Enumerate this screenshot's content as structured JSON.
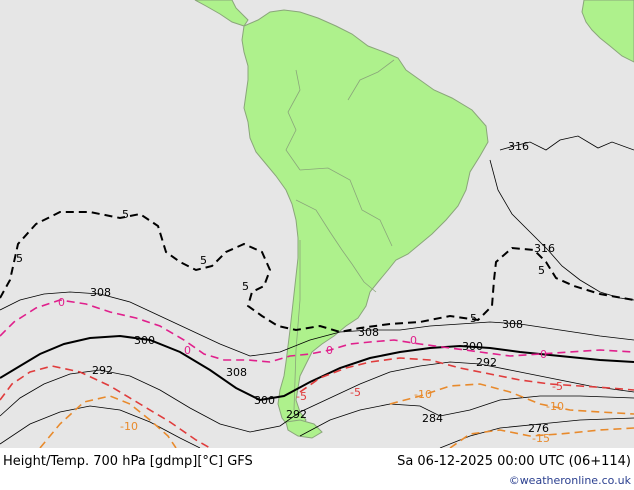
{
  "map": {
    "colors": {
      "ocean": "#e6e6e6",
      "land": "#aef18c",
      "border": "#8aa67a",
      "height_contour": "#000000",
      "temp_negative": "#e03c3c",
      "temp_positive_or_zero": "#e0208c",
      "temp_cold": "#e88a2c",
      "temp_very_cold": "#000000"
    },
    "height_labels": [
      "316",
      "316",
      "308",
      "308",
      "308",
      "308",
      "300",
      "300",
      "300",
      "292",
      "292",
      "292",
      "284",
      "276"
    ],
    "temp_labels": [
      "5",
      "5",
      "5",
      "5",
      "5",
      "5",
      "0",
      "0",
      "0",
      "0",
      "0",
      "-5",
      "-5",
      "-10",
      "-10",
      "-10",
      "-15",
      "-5"
    ]
  },
  "footer": {
    "title": "Height/Temp. 700 hPa [gdmp][°C] GFS",
    "valid_time": "Sa 06-12-2025 00:00 UTC (06+114)",
    "credit": "©weatheronline.co.uk"
  }
}
